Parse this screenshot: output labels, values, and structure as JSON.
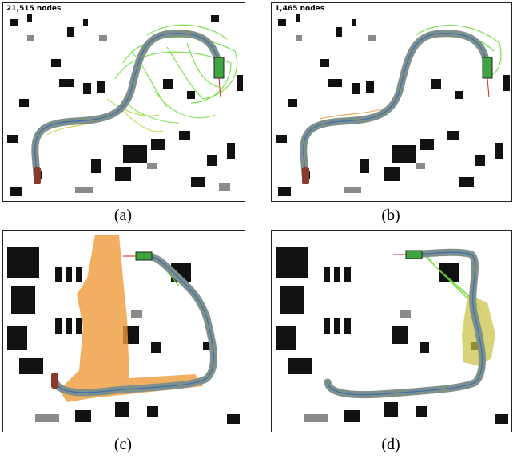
{
  "figure": {
    "panels": [
      {
        "id": "a",
        "caption": "(a)",
        "node_count": "21,515 nodes"
      },
      {
        "id": "b",
        "caption": "(b)",
        "node_count": "1,465 nodes"
      },
      {
        "id": "c",
        "caption": "(c)",
        "node_count": ""
      },
      {
        "id": "d",
        "caption": "(d)",
        "node_count": ""
      }
    ],
    "colors": {
      "path": "#7f8f8a",
      "path_center": "#3a6fb0",
      "tree_green": "#66dd33",
      "tree_yellow": "#c8d040",
      "tree_orange": "#ef9a3a",
      "car_start": "#8a3a2a",
      "car_goal": "#3fa53f",
      "obstacle": "#111111"
    }
  }
}
